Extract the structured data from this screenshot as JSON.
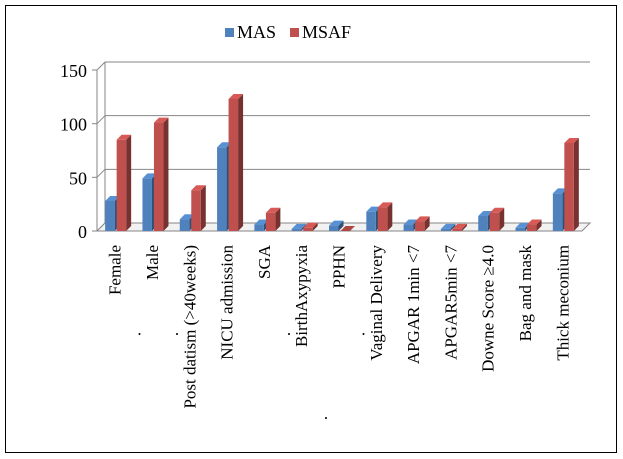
{
  "chart_data": {
    "type": "bar",
    "title": "",
    "xlabel": "",
    "ylabel": "",
    "ylim": [
      0,
      150
    ],
    "yticks": [
      0,
      50,
      100,
      150
    ],
    "grid": true,
    "legend_position": "top",
    "categories": [
      "Female",
      "Male",
      "Post datism (>40weeks)",
      "NICU admission",
      "SGA",
      "BirthAxypyxia",
      "PPHN",
      "Vaginal Delivery",
      "APGAR 1min <7",
      "APGAR5min <7",
      "Downe Score ≥4.0",
      "Bag and mask",
      "Thick meconium"
    ],
    "category_notes": [
      ".",
      ".",
      "",
      "",
      ".",
      ".",
      ".",
      "",
      "",
      "",
      "",
      "",
      ""
    ],
    "series": [
      {
        "name": "MAS",
        "color": "#4F81BD",
        "values": [
          28,
          49,
          11,
          78,
          6,
          2,
          5,
          18,
          6,
          2,
          14,
          3,
          35
        ]
      },
      {
        "name": "MSAF",
        "color": "#C0504D",
        "values": [
          85,
          101,
          38,
          123,
          17,
          3,
          0,
          22,
          9,
          2,
          17,
          6,
          82
        ]
      }
    ]
  }
}
